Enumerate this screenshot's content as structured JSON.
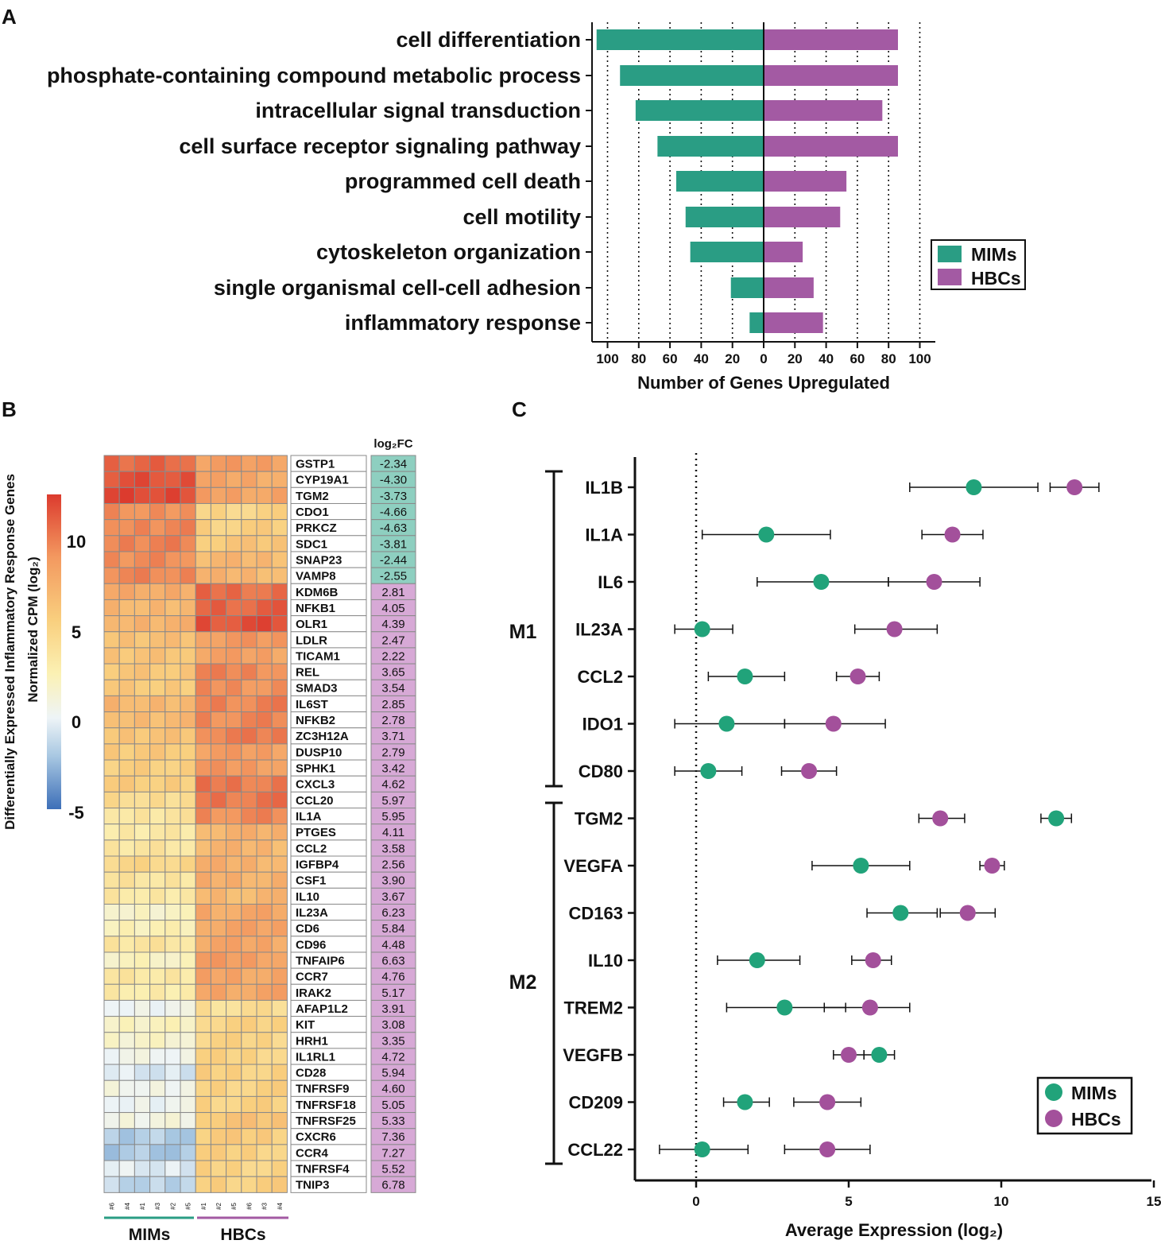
{
  "panel_labels": {
    "a": "A",
    "b": "B",
    "c": "C"
  },
  "colors": {
    "mims": "#2a9d84",
    "hbcs": "#a35aa3",
    "mims_dot": "#21a37a",
    "hbcs_dot": "#a3509b",
    "fc_neg": "#8ecfc0",
    "fc_pos": "#d7a9d6"
  },
  "chart_data": [
    {
      "panel": "A",
      "type": "bar",
      "orientation": "horizontal-diverging",
      "categories": [
        "cell differentiation",
        "phosphate-containing compound metabolic process",
        "intracellular signal transduction",
        "cell surface receptor signaling pathway",
        "programmed cell death",
        "cell motility",
        "cytoskeleton organization",
        "single organismal cell-cell adhesion",
        "inflammatory response"
      ],
      "series": [
        {
          "name": "MIMs",
          "values": [
            107,
            92,
            82,
            68,
            56,
            50,
            47,
            21,
            9
          ]
        },
        {
          "name": "HBCs",
          "values": [
            86,
            86,
            76,
            86,
            53,
            49,
            25,
            32,
            38
          ]
        }
      ],
      "xlabel": "Number of Genes Upregulated",
      "xlim": [
        -110,
        110
      ],
      "xticks": [
        100,
        80,
        60,
        40,
        20,
        0,
        20,
        40,
        60,
        80,
        100
      ],
      "grid": "vertical dotted",
      "legend": [
        "MIMs",
        "HBCs"
      ],
      "legend_position": "right"
    },
    {
      "panel": "B",
      "type": "heatmap",
      "ytitle_line1": "Differentially Expressed Inflammatory Response Genes",
      "ytitle_line2": "Normalized CPM (log₂)",
      "colorbar_ticks": [
        "10",
        "5",
        "0",
        "-5"
      ],
      "colorbar_range": [
        -5,
        12.5
      ],
      "fc_header": "log₂FC",
      "columns": [
        "#6",
        "#4",
        "#1",
        "#3",
        "#2",
        "#5",
        "#1",
        "#2",
        "#5",
        "#6",
        "#3",
        "#4"
      ],
      "groups": [
        {
          "name": "MIMs",
          "count": 6
        },
        {
          "name": "HBCs",
          "count": 6
        }
      ],
      "rows": [
        {
          "gene": "GSTP1",
          "fc": "-2.34",
          "mims": 10.8,
          "hbcs": 8.6
        },
        {
          "gene": "CYP19A1",
          "fc": "-4.30",
          "mims": 11.6,
          "hbcs": 8.0
        },
        {
          "gene": "TGM2",
          "fc": "-3.73",
          "mims": 12.0,
          "hbcs": 8.4
        },
        {
          "gene": "CDO1",
          "fc": "-4.66",
          "mims": 9.3,
          "hbcs": 5.0
        },
        {
          "gene": "PRKCZ",
          "fc": "-4.63",
          "mims": 9.6,
          "hbcs": 5.4
        },
        {
          "gene": "SDC1",
          "fc": "-3.81",
          "mims": 9.8,
          "hbcs": 6.0
        },
        {
          "gene": "SNAP23",
          "fc": "-2.44",
          "mims": 9.4,
          "hbcs": 6.9
        },
        {
          "gene": "VAMP8",
          "fc": "-2.55",
          "mims": 9.6,
          "hbcs": 7.1
        },
        {
          "gene": "KDM6B",
          "fc": "2.81",
          "mims": 7.8,
          "hbcs": 10.6
        },
        {
          "gene": "NFKB1",
          "fc": "4.05",
          "mims": 7.0,
          "hbcs": 11.0
        },
        {
          "gene": "OLR1",
          "fc": "4.39",
          "mims": 7.3,
          "hbcs": 11.7
        },
        {
          "gene": "LDLR",
          "fc": "2.47",
          "mims": 6.4,
          "hbcs": 8.8
        },
        {
          "gene": "TICAM1",
          "fc": "2.22",
          "mims": 6.2,
          "hbcs": 8.4
        },
        {
          "gene": "REL",
          "fc": "3.65",
          "mims": 6.0,
          "hbcs": 9.6
        },
        {
          "gene": "SMAD3",
          "fc": "3.54",
          "mims": 5.8,
          "hbcs": 9.3
        },
        {
          "gene": "IL6ST",
          "fc": "2.85",
          "mims": 7.0,
          "hbcs": 9.8
        },
        {
          "gene": "NFKB2",
          "fc": "2.78",
          "mims": 6.8,
          "hbcs": 9.6
        },
        {
          "gene": "ZC3H12A",
          "fc": "3.71",
          "mims": 6.2,
          "hbcs": 9.9
        },
        {
          "gene": "DUSP10",
          "fc": "2.79",
          "mims": 5.8,
          "hbcs": 8.6
        },
        {
          "gene": "SPHK1",
          "fc": "3.42",
          "mims": 5.4,
          "hbcs": 8.8
        },
        {
          "gene": "CXCL3",
          "fc": "4.62",
          "mims": 5.6,
          "hbcs": 10.2
        },
        {
          "gene": "CCL20",
          "fc": "5.97",
          "mims": 4.4,
          "hbcs": 10.3
        },
        {
          "gene": "IL1A",
          "fc": "5.95",
          "mims": 3.6,
          "hbcs": 9.5
        },
        {
          "gene": "PTGES",
          "fc": "4.11",
          "mims": 3.2,
          "hbcs": 7.3
        },
        {
          "gene": "CCL2",
          "fc": "3.58",
          "mims": 3.5,
          "hbcs": 7.1
        },
        {
          "gene": "IGFBP4",
          "fc": "2.56",
          "mims": 4.8,
          "hbcs": 7.4
        },
        {
          "gene": "CSF1",
          "fc": "3.90",
          "mims": 3.6,
          "hbcs": 7.5
        },
        {
          "gene": "IL10",
          "fc": "3.67",
          "mims": 3.3,
          "hbcs": 7.0
        },
        {
          "gene": "IL23A",
          "fc": "6.23",
          "mims": 1.8,
          "hbcs": 8.0
        },
        {
          "gene": "CD6",
          "fc": "5.84",
          "mims": 2.4,
          "hbcs": 8.2
        },
        {
          "gene": "CD96",
          "fc": "4.48",
          "mims": 3.6,
          "hbcs": 8.1
        },
        {
          "gene": "TNFAIP6",
          "fc": "6.63",
          "mims": 2.0,
          "hbcs": 8.6
        },
        {
          "gene": "CCR7",
          "fc": "4.76",
          "mims": 3.4,
          "hbcs": 8.2
        },
        {
          "gene": "IRAK2",
          "fc": "5.17",
          "mims": 3.0,
          "hbcs": 8.2
        },
        {
          "gene": "AFAP1L2",
          "fc": "3.91",
          "mims": 0.3,
          "hbcs": 4.2
        },
        {
          "gene": "KIT",
          "fc": "3.08",
          "mims": 2.0,
          "hbcs": 5.1
        },
        {
          "gene": "HRH1",
          "fc": "3.35",
          "mims": 1.6,
          "hbcs": 5.0
        },
        {
          "gene": "IL1RL1",
          "fc": "4.72",
          "mims": 0.4,
          "hbcs": 5.1
        },
        {
          "gene": "CD28",
          "fc": "5.94",
          "mims": -0.6,
          "hbcs": 5.3
        },
        {
          "gene": "TNFRSF9",
          "fc": "4.60",
          "mims": 0.6,
          "hbcs": 5.2
        },
        {
          "gene": "TNFRSF18",
          "fc": "5.05",
          "mims": 0.2,
          "hbcs": 5.2
        },
        {
          "gene": "TNFRSF25",
          "fc": "5.33",
          "mims": 0.8,
          "hbcs": 6.1
        },
        {
          "gene": "CXCR6",
          "fc": "7.36",
          "mims": -1.8,
          "hbcs": 5.6
        },
        {
          "gene": "CCR4",
          "fc": "7.27",
          "mims": -2.0,
          "hbcs": 5.3
        },
        {
          "gene": "TNFRSF4",
          "fc": "5.52",
          "mims": -0.4,
          "hbcs": 5.1
        },
        {
          "gene": "TNIP3",
          "fc": "6.78",
          "mims": -1.4,
          "hbcs": 5.4
        }
      ]
    },
    {
      "panel": "C",
      "type": "scatter",
      "subtype": "dot-with-error-bars",
      "xlabel": "Average Expression (log₂)",
      "xlim": [
        -2,
        15
      ],
      "xticks": [
        0,
        5,
        10,
        15
      ],
      "reference_line": 0,
      "groups": [
        {
          "name": "M1",
          "genes": [
            "IL1B",
            "IL1A",
            "IL6",
            "IL23A",
            "CCL2",
            "IDO1",
            "CD80"
          ]
        },
        {
          "name": "M2",
          "genes": [
            "TGM2",
            "VEGFA",
            "CD163",
            "IL10",
            "TREM2",
            "VEGFB",
            "CD209",
            "CCL22"
          ]
        }
      ],
      "genes": [
        "IL1B",
        "IL1A",
        "IL6",
        "IL23A",
        "CCL2",
        "IDO1",
        "CD80",
        "TGM2",
        "VEGFA",
        "CD163",
        "IL10",
        "TREM2",
        "VEGFB",
        "CD209",
        "CCL22"
      ],
      "series": [
        {
          "name": "MIMs",
          "mean": [
            9.1,
            2.3,
            4.1,
            0.2,
            1.6,
            1.0,
            0.4,
            11.8,
            5.4,
            6.7,
            2.0,
            2.9,
            6.0,
            1.6,
            0.2
          ],
          "lo": [
            7.0,
            0.2,
            2.0,
            -0.7,
            0.4,
            -0.7,
            -0.7,
            11.3,
            3.8,
            5.6,
            0.7,
            1.0,
            5.5,
            0.9,
            -1.2
          ],
          "hi": [
            11.2,
            4.4,
            6.3,
            1.2,
            2.9,
            2.9,
            1.5,
            12.3,
            7.0,
            7.9,
            3.4,
            4.9,
            6.5,
            2.4,
            1.7
          ]
        },
        {
          "name": "HBCs",
          "mean": [
            12.4,
            8.4,
            7.8,
            6.5,
            5.3,
            4.5,
            3.7,
            8.0,
            9.7,
            8.9,
            5.8,
            5.7,
            5.0,
            4.3,
            4.3
          ],
          "lo": [
            11.6,
            7.4,
            6.3,
            5.2,
            4.6,
            2.9,
            2.8,
            7.3,
            9.3,
            8.0,
            5.1,
            4.2,
            4.5,
            3.2,
            2.9
          ],
          "hi": [
            13.2,
            9.4,
            9.3,
            7.9,
            6.0,
            6.2,
            4.6,
            8.8,
            10.1,
            9.8,
            6.4,
            7.0,
            5.5,
            5.4,
            5.7
          ]
        }
      ],
      "legend": [
        "MIMs",
        "HBCs"
      ],
      "legend_position": "bottom-right"
    }
  ]
}
